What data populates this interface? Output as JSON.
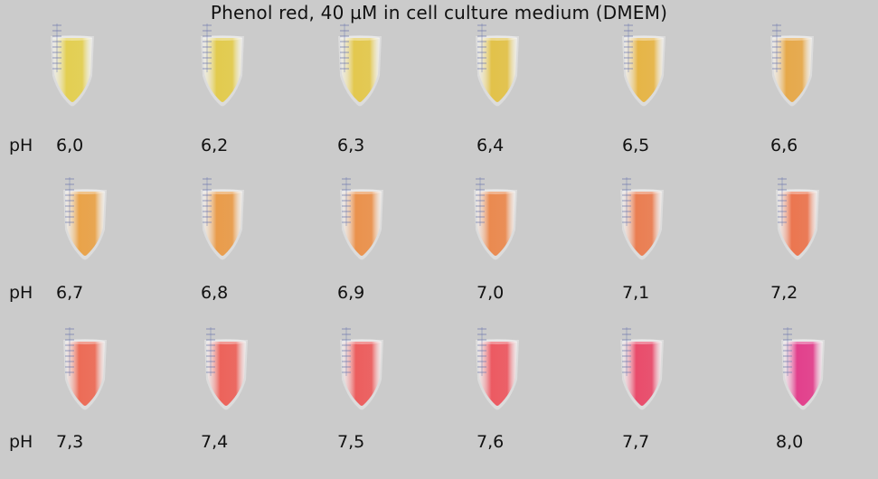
{
  "title": "Phenol red, 40 µM in cell culture medium (DMEM)",
  "row_label": "pH",
  "rows": [
    {
      "samples": [
        {
          "ph": "6,0",
          "color": "#e3cf52"
        },
        {
          "ph": "6,2",
          "color": "#e2cb4e"
        },
        {
          "ph": "6,3",
          "color": "#e3c84e"
        },
        {
          "ph": "6,4",
          "color": "#e2c24a"
        },
        {
          "ph": "6,5",
          "color": "#e6b547"
        },
        {
          "ph": "6,6",
          "color": "#e6a94b"
        }
      ]
    },
    {
      "samples": [
        {
          "ph": "6,7",
          "color": "#e9a34a"
        },
        {
          "ph": "6,8",
          "color": "#e99c4b"
        },
        {
          "ph": "6,9",
          "color": "#ea924d"
        },
        {
          "ph": "7,0",
          "color": "#ea8a50"
        },
        {
          "ph": "7,1",
          "color": "#ea7e52"
        },
        {
          "ph": "7,2",
          "color": "#eb7650"
        }
      ]
    },
    {
      "samples": [
        {
          "ph": "7,3",
          "color": "#ec6c57"
        },
        {
          "ph": "7,4",
          "color": "#ec635b"
        },
        {
          "ph": "7,5",
          "color": "#ec5e5e"
        },
        {
          "ph": "7,6",
          "color": "#ec5a62"
        },
        {
          "ph": "7,7",
          "color": "#e94c6b"
        },
        {
          "ph": "8,0",
          "color": "#e2408c"
        }
      ]
    }
  ]
}
